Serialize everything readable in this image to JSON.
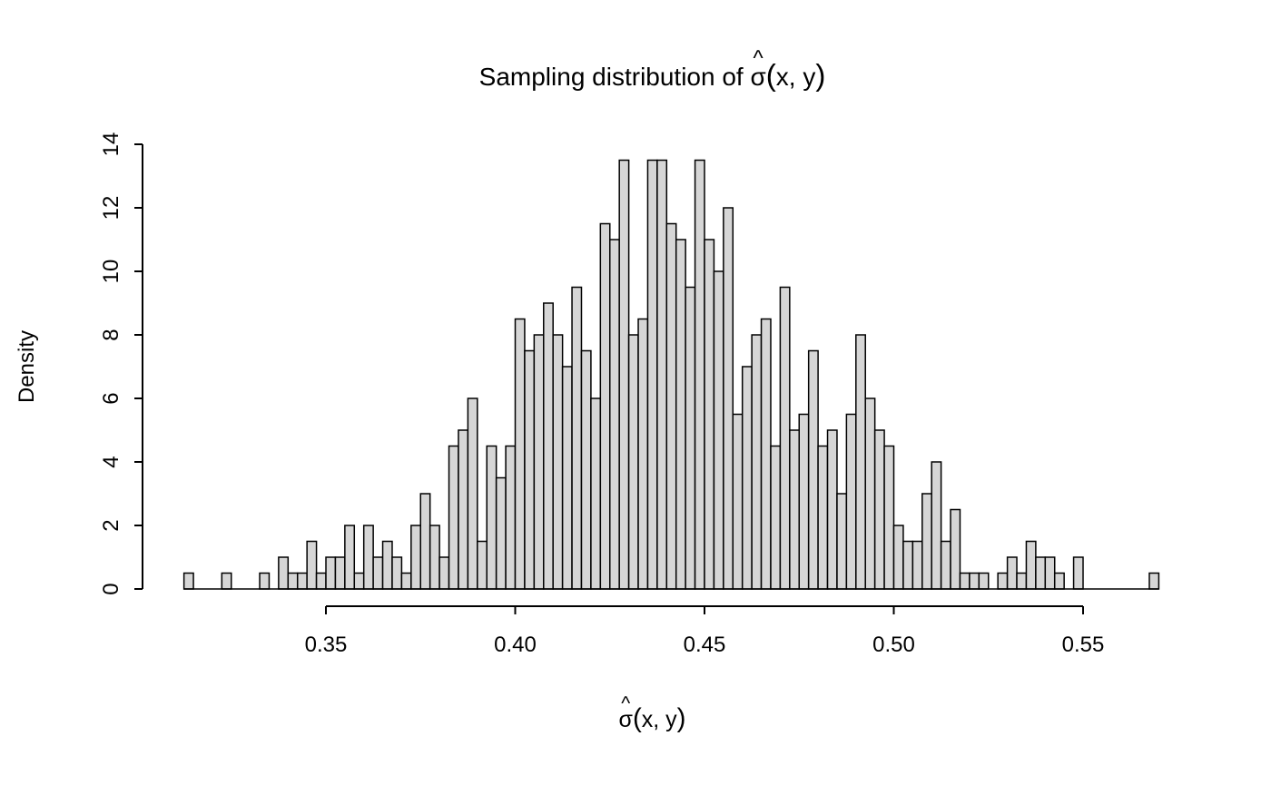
{
  "title": {
    "prefix": "Sampling distribution of ",
    "sigma": "σ",
    "hat": "^",
    "paren_open": "(",
    "args_inner": "x, y",
    "paren_close": ")"
  },
  "xlabel": {
    "sigma": "σ",
    "hat": "^",
    "paren_open": "(",
    "args_inner": "x, y",
    "paren_close": ")"
  },
  "ylabel": "Density",
  "chart_data": {
    "type": "bar",
    "subtype": "histogram",
    "title": "Sampling distribution of σ̂(x, y)",
    "xlabel": "σ̂(x, y)",
    "ylabel": "Density",
    "grid": false,
    "legend": "none",
    "xlim": [
      0.3125,
      0.57
    ],
    "ylim": [
      0,
      14
    ],
    "bin_start": 0.3125,
    "bin_width": 0.0025,
    "x_ticks": [
      0.35,
      0.4,
      0.45,
      0.5,
      0.55
    ],
    "x_tick_labels": [
      "0.35",
      "0.40",
      "0.45",
      "0.50",
      "0.55"
    ],
    "y_ticks": [
      0,
      2,
      4,
      6,
      8,
      10,
      12,
      14
    ],
    "y_tick_labels": [
      "0",
      "2",
      "4",
      "6",
      "8",
      "10",
      "12",
      "14"
    ],
    "bar_fill": "#d6d6d6",
    "bar_stroke": "#000000",
    "axis_color": "#000000",
    "densities": [
      0.5,
      0,
      0,
      0,
      0.5,
      0,
      0,
      0,
      0.5,
      0,
      1,
      0.5,
      0.5,
      1.5,
      0.5,
      1,
      1,
      2,
      0.5,
      2,
      1,
      1.5,
      1,
      0.5,
      2,
      3,
      2,
      1,
      4.5,
      5,
      6,
      1.5,
      4.5,
      3.5,
      4.5,
      8.5,
      7.5,
      8,
      9,
      8,
      7,
      9.5,
      7.5,
      6,
      11.5,
      11,
      13.5,
      8,
      8.5,
      13.5,
      13.5,
      11.5,
      11,
      9.5,
      13.5,
      11,
      10,
      12,
      5.5,
      7,
      8,
      8.5,
      4.5,
      9.5,
      5,
      5.5,
      7.5,
      4.5,
      5,
      3,
      5.5,
      8,
      6,
      5,
      4.5,
      2,
      1.5,
      1.5,
      3,
      4,
      1.5,
      2.5,
      0.5,
      0.5,
      0.5,
      0,
      0.5,
      1,
      0.5,
      1.5,
      1,
      1,
      0.5,
      0,
      1,
      0,
      0,
      0,
      0,
      0,
      0,
      0,
      0.5
    ]
  }
}
